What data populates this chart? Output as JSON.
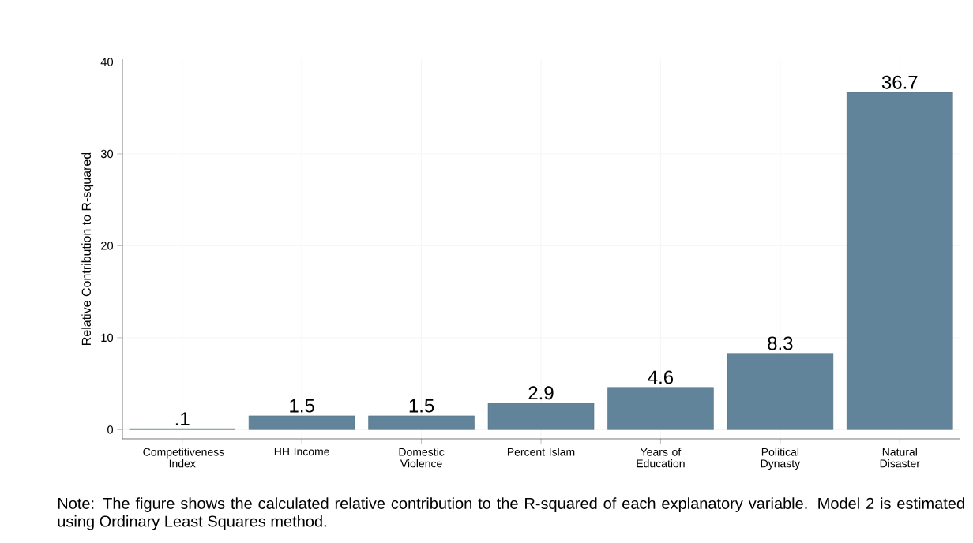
{
  "chart_data": {
    "type": "bar",
    "ylabel": "Relative Contribution to R-squared",
    "categories": [
      "Competitiveness Index",
      "HH Income",
      "Domestic Violence",
      "Percent Islam",
      "Years of Education",
      "Political Dynasty",
      "Natural Disaster"
    ],
    "values": [
      0.1,
      1.5,
      1.5,
      2.9,
      4.6,
      8.3,
      36.7
    ],
    "value_labels": [
      ".1",
      "1.5",
      "1.5",
      "2.9",
      "4.6",
      "8.3",
      "36.7"
    ],
    "color": "#62849a",
    "ylim": [
      -1,
      40.3
    ],
    "yticks": [
      0,
      10,
      20,
      30,
      40
    ],
    "grid": true,
    "annotations": [
      "Note: The figure shows the calculated relative contribution to the R-squared of each explanatory variable. Model 2 is estimated using Ordinary Least Squares method."
    ]
  }
}
